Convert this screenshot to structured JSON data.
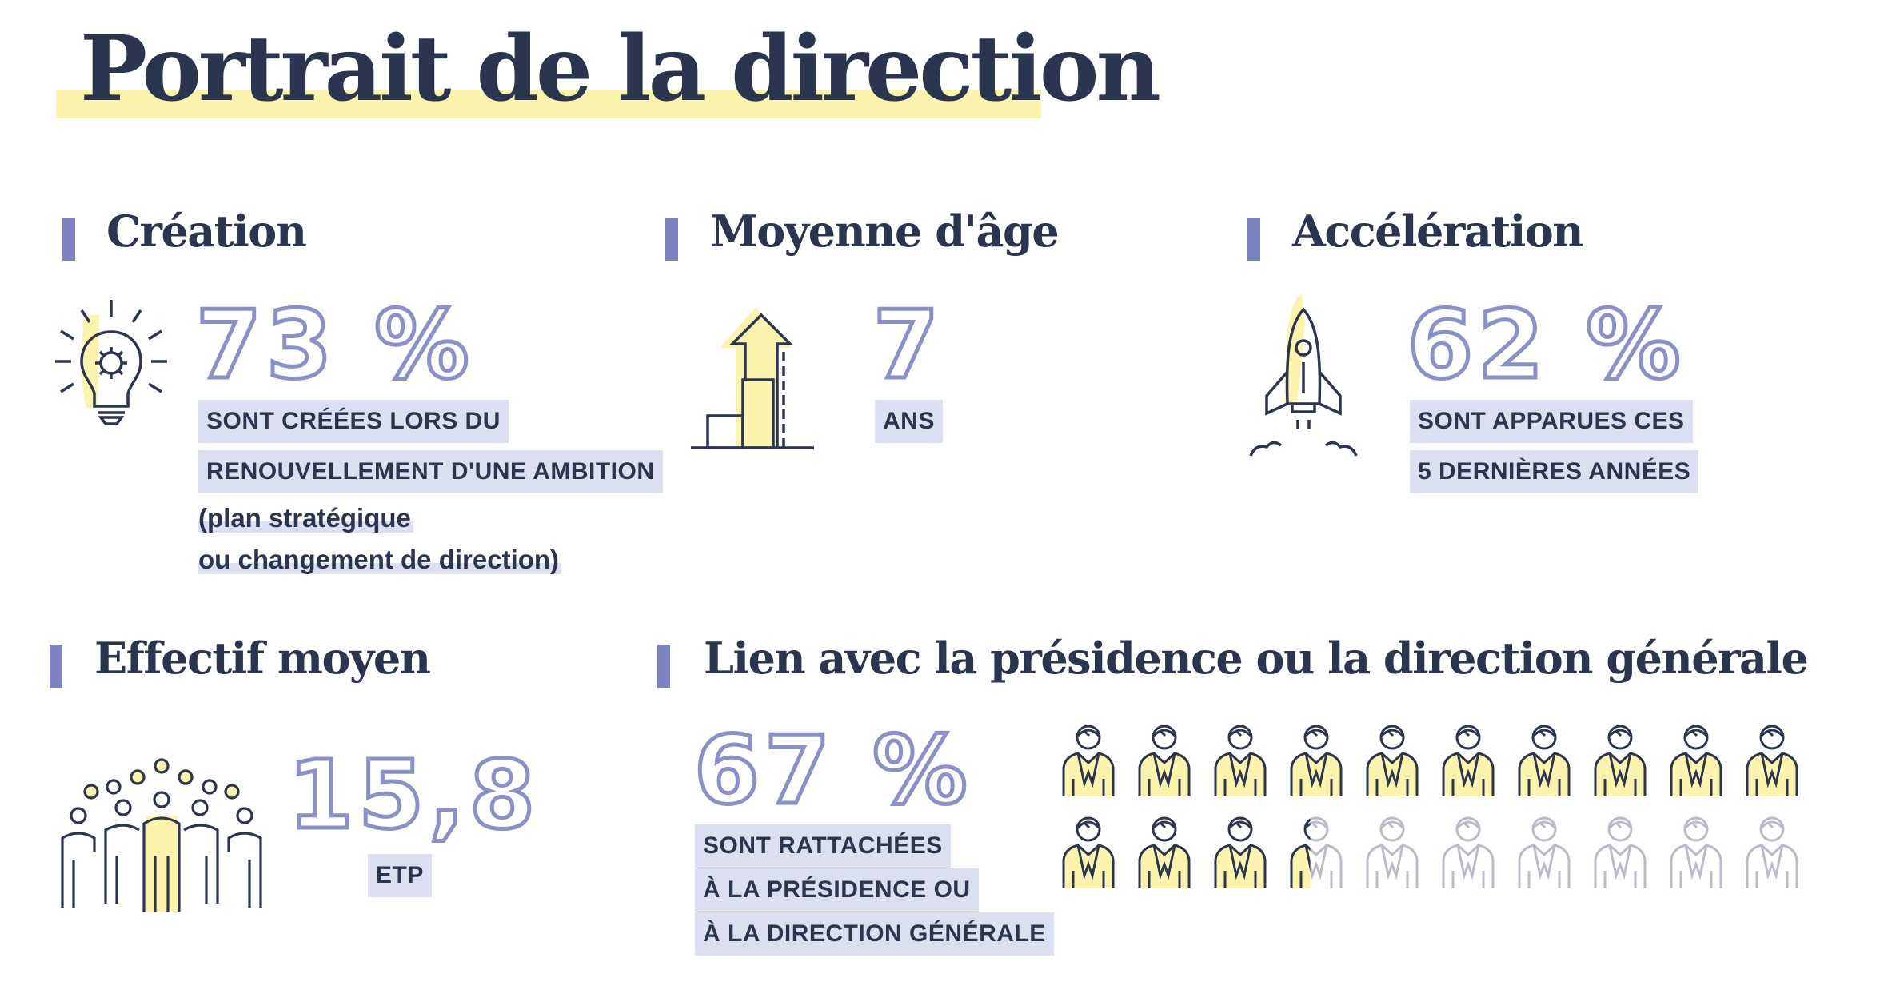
{
  "title": "Portrait de la direction",
  "colors": {
    "navy": "#2b3550",
    "accent": "#7d83c2",
    "highlight": "#fbf4ad",
    "label_bg": "#dcdff0"
  },
  "creation": {
    "heading": "Création",
    "icon": "lightbulb-icon",
    "value": "73 %",
    "label_line1": "SONT CRÉÉES LORS DU",
    "label_line2": "RENOUVELLEMENT D'UNE AMBITION",
    "sub_line1": "(plan stratégique",
    "sub_line2": "ou changement de direction)"
  },
  "age": {
    "heading": "Moyenne d'âge",
    "icon": "growth-arrow-icon",
    "value": "7",
    "label": "ANS"
  },
  "acceleration": {
    "heading": "Accélération",
    "icon": "rocket-icon",
    "value": "62 %",
    "label_line1": "SONT APPARUES CES",
    "label_line2": "5 DERNIÈRES ANNÉES"
  },
  "effectif": {
    "heading": "Effectif moyen",
    "icon": "team-icon",
    "value": "15,8",
    "label": "ETP"
  },
  "lien": {
    "heading": "Lien avec la présidence ou la direction générale",
    "value": "67 %",
    "label_line1": "SONT RATTACHÉES",
    "label_line2": "À LA PRÉSIDENCE OU",
    "label_line3": "À LA DIRECTION GÉNÉRALE",
    "icon": "person-icon",
    "pictogram": {
      "total": 20,
      "per_row": 10,
      "filled_fraction": 0.67
    }
  }
}
